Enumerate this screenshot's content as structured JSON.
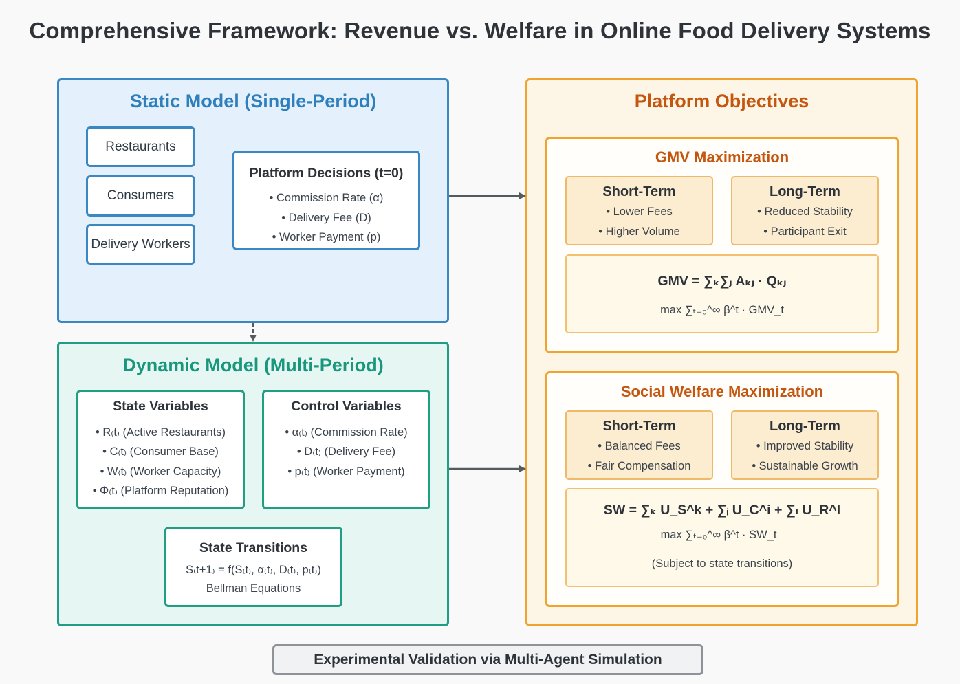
{
  "title": "Comprehensive Framework: Revenue vs. Welfare in Online Food Delivery Systems",
  "static_model": {
    "title": "Static Model (Single-Period)",
    "entities": [
      "Restaurants",
      "Consumers",
      "Delivery Workers"
    ],
    "decisions": {
      "title": "Platform Decisions (t=0)",
      "items": [
        "• Commission Rate (α)",
        "• Delivery Fee (D)",
        "• Worker Payment (p)"
      ]
    }
  },
  "dynamic_model": {
    "title": "Dynamic Model (Multi-Period)",
    "state_variables": {
      "title": "State Variables",
      "items": [
        "• R₍t₎ (Active Restaurants)",
        "• C₍t₎ (Consumer Base)",
        "• W₍t₎ (Worker Capacity)",
        "• Φ₍t₎ (Platform Reputation)"
      ]
    },
    "control_variables": {
      "title": "Control Variables",
      "items": [
        "• α₍t₎ (Commission Rate)",
        "• D₍t₎ (Delivery Fee)",
        "• p₍t₎ (Worker Payment)"
      ]
    },
    "transitions": {
      "title": "State Transitions",
      "items": [
        "S₍t+1₎ = f(S₍t₎, α₍t₎, D₍t₎, p₍t₎)",
        "Bellman Equations"
      ]
    }
  },
  "objectives": {
    "title": "Platform Objectives",
    "gmv": {
      "title": "GMV Maximization",
      "short_term": {
        "title": "Short-Term",
        "items": [
          "• Lower Fees",
          "• Higher Volume"
        ]
      },
      "long_term": {
        "title": "Long-Term",
        "items": [
          "• Reduced Stability",
          "• Participant Exit"
        ]
      },
      "formula": "GMV = ∑ₖ∑ⱼ Aₖⱼ · Qₖⱼ",
      "objective": "max ∑ₜ₌₀^∞ β^t · GMV_t"
    },
    "welfare": {
      "title": "Social Welfare Maximization",
      "short_term": {
        "title": "Short-Term",
        "items": [
          "• Balanced Fees",
          "• Fair Compensation"
        ]
      },
      "long_term": {
        "title": "Long-Term",
        "items": [
          "• Improved Stability",
          "• Sustainable Growth"
        ]
      },
      "formula": "SW = ∑ₖ U_S^k + ∑ᵢ U_C^i + ∑ₗ U_R^l",
      "objective": "max ∑ₜ₌₀^∞ β^t · SW_t",
      "note": "(Subject to state transitions)"
    }
  },
  "footer": "Experimental Validation via Multi-Agent Simulation",
  "colors": {
    "static_border": "#3b87c2",
    "dynamic_border": "#1f9e84",
    "objective_border": "#f0a42d",
    "objective_title": "#c5560f"
  }
}
